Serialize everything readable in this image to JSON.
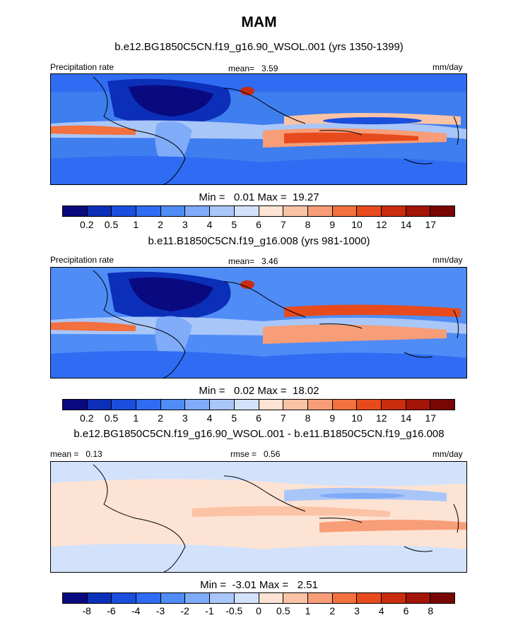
{
  "season": "MAM",
  "panels": [
    {
      "title": "b.e12.BG1850C5CN.f19_g16.90_WSOL.001 (yrs 1350-1399)",
      "left_label": "Precipitation rate",
      "center_label": "mean=",
      "center_value": "3.59",
      "right_label": "mm/day",
      "min_label": "Min =",
      "min_value": "0.01",
      "max_label": "Max =",
      "max_value": "19.27",
      "style": "abs"
    },
    {
      "title": "b.e11.B1850C5CN.f19_g16.008 (yrs 981-1000)",
      "left_label": "Precipitation rate",
      "center_label": "mean=",
      "center_value": "3.46",
      "right_label": "mm/day",
      "min_label": "Min =",
      "min_value": "0.02",
      "max_label": "Max =",
      "max_value": "18.02",
      "style": "abs"
    },
    {
      "title": "b.e12.BG1850C5CN.f19_g16.90_WSOL.001 - b.e11.B1850C5CN.f19_g16.008",
      "left_label": "mean =",
      "left_value": "0.13",
      "center_label": "rmse =",
      "center_value": "0.56",
      "right_label": "mm/day",
      "min_label": "Min =",
      "min_value": "-3.01",
      "max_label": "Max =",
      "max_value": "2.51",
      "style": "diff"
    }
  ],
  "colorbar_abs": {
    "labels": [
      "0.2",
      "0.5",
      "1",
      "2",
      "3",
      "4",
      "5",
      "6",
      "7",
      "8",
      "9",
      "10",
      "12",
      "14",
      "17"
    ],
    "colors": [
      "#0a0a80",
      "#0b2fb8",
      "#1a4fdd",
      "#2f6cf3",
      "#4f8cf6",
      "#7fabf8",
      "#a9c6f9",
      "#d3e2fb",
      "#fde3d3",
      "#fbc3a6",
      "#f79d77",
      "#f2713f",
      "#e74b1d",
      "#c92d0e",
      "#a41509",
      "#7a0505"
    ]
  },
  "colorbar_diff": {
    "labels": [
      "-8",
      "-6",
      "-4",
      "-3",
      "-2",
      "-1",
      "-0.5",
      "0",
      "0.5",
      "1",
      "2",
      "3",
      "4",
      "6",
      "8"
    ],
    "colors": [
      "#0a0a80",
      "#0b2fb8",
      "#1a4fdd",
      "#2f6cf3",
      "#4f8cf6",
      "#7fabf8",
      "#a9c6f9",
      "#d3e2fb",
      "#fde3d3",
      "#fbc3a6",
      "#f79d77",
      "#f2713f",
      "#e74b1d",
      "#c92d0e",
      "#a41509",
      "#7a0505"
    ]
  }
}
